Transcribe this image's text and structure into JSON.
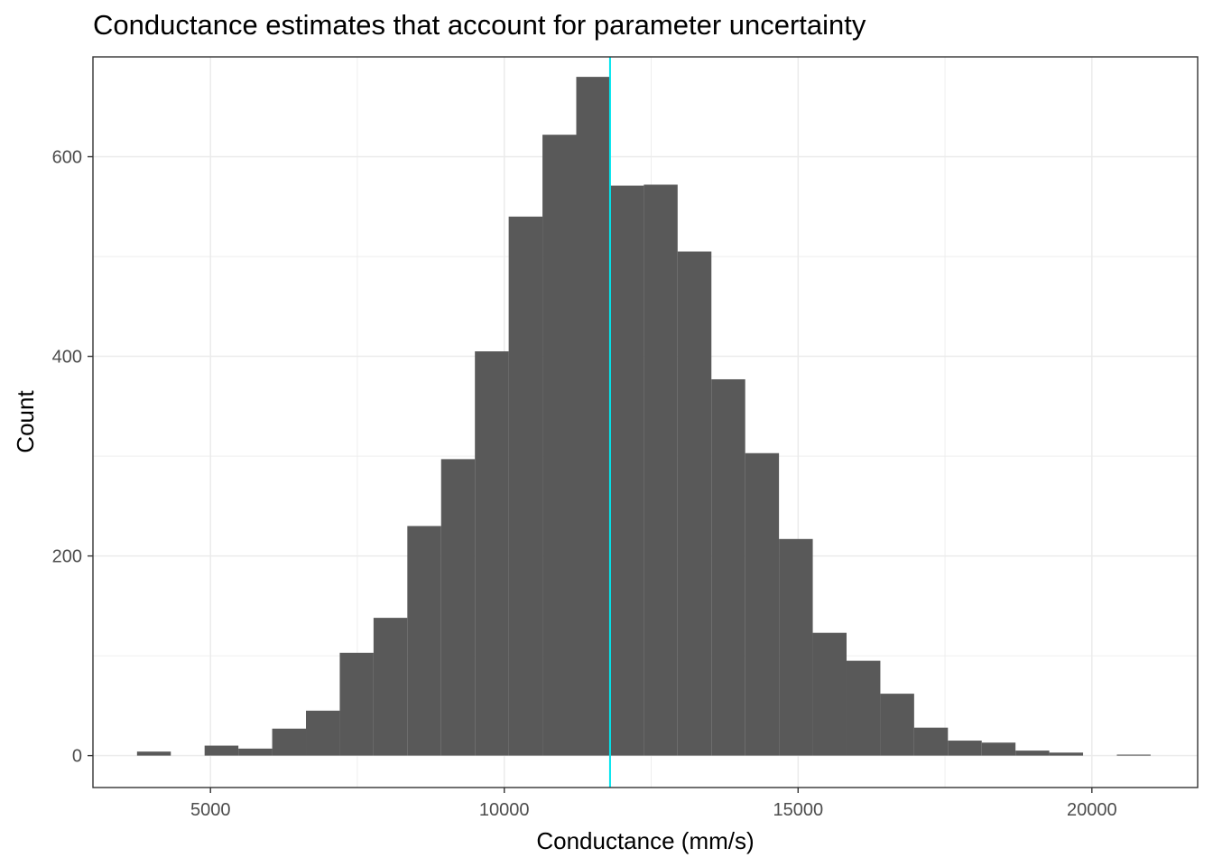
{
  "chart_data": {
    "type": "bar",
    "title": "Conductance estimates that account for parameter uncertainty",
    "xlabel": "Conductance (mm/s)",
    "ylabel": "Count",
    "xlim": [
      3000,
      21800
    ],
    "ylim": [
      -32,
      700
    ],
    "x_ticks": [
      5000,
      10000,
      15000,
      20000
    ],
    "y_ticks": [
      0,
      200,
      400,
      600
    ],
    "grid": true,
    "bins": [
      {
        "x0": 3750,
        "x1": 4325,
        "count": 4
      },
      {
        "x0": 4325,
        "x1": 4900,
        "count": 0
      },
      {
        "x0": 4900,
        "x1": 5475,
        "count": 10
      },
      {
        "x0": 5475,
        "x1": 6050,
        "count": 7
      },
      {
        "x0": 6050,
        "x1": 6625,
        "count": 27
      },
      {
        "x0": 6625,
        "x1": 7200,
        "count": 45
      },
      {
        "x0": 7200,
        "x1": 7775,
        "count": 103
      },
      {
        "x0": 7775,
        "x1": 8350,
        "count": 138
      },
      {
        "x0": 8350,
        "x1": 8925,
        "count": 230
      },
      {
        "x0": 8925,
        "x1": 9500,
        "count": 297
      },
      {
        "x0": 9500,
        "x1": 10075,
        "count": 405
      },
      {
        "x0": 10075,
        "x1": 10650,
        "count": 540
      },
      {
        "x0": 10650,
        "x1": 11225,
        "count": 622
      },
      {
        "x0": 11225,
        "x1": 11800,
        "count": 680
      },
      {
        "x0": 11800,
        "x1": 12375,
        "count": 571
      },
      {
        "x0": 12375,
        "x1": 12950,
        "count": 572
      },
      {
        "x0": 12950,
        "x1": 13525,
        "count": 505
      },
      {
        "x0": 13525,
        "x1": 14100,
        "count": 377
      },
      {
        "x0": 14100,
        "x1": 14675,
        "count": 303
      },
      {
        "x0": 14675,
        "x1": 15250,
        "count": 217
      },
      {
        "x0": 15250,
        "x1": 15825,
        "count": 123
      },
      {
        "x0": 15825,
        "x1": 16400,
        "count": 95
      },
      {
        "x0": 16400,
        "x1": 16975,
        "count": 62
      },
      {
        "x0": 16975,
        "x1": 17550,
        "count": 28
      },
      {
        "x0": 17550,
        "x1": 18125,
        "count": 15
      },
      {
        "x0": 18125,
        "x1": 18700,
        "count": 13
      },
      {
        "x0": 18700,
        "x1": 19275,
        "count": 5
      },
      {
        "x0": 19275,
        "x1": 19850,
        "count": 3
      },
      {
        "x0": 19850,
        "x1": 20425,
        "count": 0
      },
      {
        "x0": 20425,
        "x1": 21000,
        "count": 1
      }
    ],
    "vline": 11800,
    "colors": {
      "bar": "#595959",
      "vline": "#00e5ee",
      "grid": "#ebebeb",
      "panel_border": "#333333"
    }
  }
}
